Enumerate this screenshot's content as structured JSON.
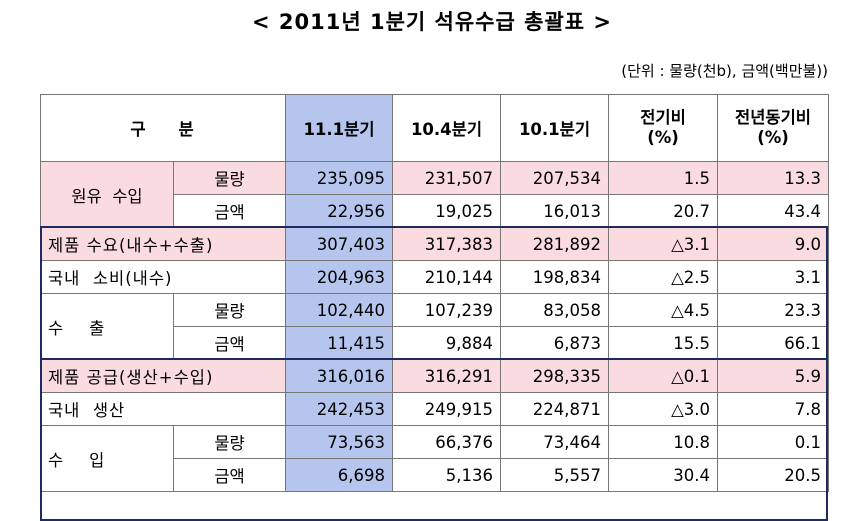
{
  "title": "< 2011년 1분기 석유수급 총괄표 >",
  "unit_note": "(단위 : 물량(천b), 금액(백만불))",
  "headers": {
    "category": "구    분",
    "c1": "11.1분기",
    "c2": "10.4분기",
    "c3": "10.1분기",
    "c4_line1": "전기비",
    "c4_line2": "(%)",
    "c5_line1": "전년동기비",
    "c5_line2": "(%)"
  },
  "rows": [
    {
      "label": "원유  수입",
      "sub": "물량",
      "v1": "235,095",
      "v2": "231,507",
      "v3": "207,534",
      "v4": "1.5",
      "v5": "13.3"
    },
    {
      "sub": "금액",
      "v1": "22,956",
      "v2": "19,025",
      "v3": "16,013",
      "v4": "20.7",
      "v5": "43.4"
    },
    {
      "label": "제품 수요(내수+수출)",
      "v1": "307,403",
      "v2": "317,383",
      "v3": "281,892",
      "v4": "△3.1",
      "v5": "9.0"
    },
    {
      "label": "국내  소비(내수)",
      "v1": "204,963",
      "v2": "210,144",
      "v3": "198,834",
      "v4": "△2.5",
      "v5": "3.1"
    },
    {
      "label": "수    출",
      "sub": "물량",
      "v1": "102,440",
      "v2": "107,239",
      "v3": "83,058",
      "v4": "△4.5",
      "v5": "23.3"
    },
    {
      "sub": "금액",
      "v1": "11,415",
      "v2": "9,884",
      "v3": "6,873",
      "v4": "15.5",
      "v5": "66.1"
    },
    {
      "label": "제품 공급(생산+수입)",
      "v1": "316,016",
      "v2": "316,291",
      "v3": "298,335",
      "v4": "△0.1",
      "v5": "5.9"
    },
    {
      "label": "국내  생산",
      "v1": "242,453",
      "v2": "249,915",
      "v3": "224,871",
      "v4": "△3.0",
      "v5": "7.8"
    },
    {
      "label": "수    입",
      "sub": "물량",
      "v1": "73,563",
      "v2": "66,376",
      "v3": "73,464",
      "v4": "10.8",
      "v5": "0.1"
    },
    {
      "sub": "금액",
      "v1": "6,698",
      "v2": "5,136",
      "v3": "5,557",
      "v4": "30.4",
      "v5": "20.5"
    }
  ]
}
